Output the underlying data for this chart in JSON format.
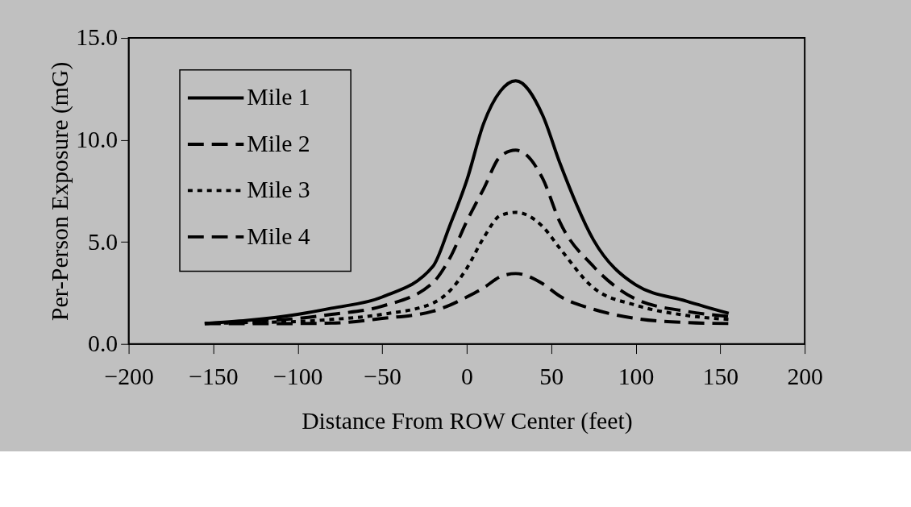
{
  "chart_data": {
    "type": "line",
    "xlabel": "Distance From ROW Center (feet)",
    "ylabel": "Per-Person Exposure (mG)",
    "x": [
      -155,
      -130,
      -100,
      -80,
      -50,
      -20,
      -10,
      0,
      10,
      20,
      29,
      45,
      55,
      75,
      100,
      130,
      155
    ],
    "series": [
      {
        "name": "Mile 1",
        "color": "#000000",
        "line_style": "solid",
        "values": [
          1.0,
          1.15,
          1.45,
          1.75,
          2.3,
          3.8,
          5.8,
          8.0,
          10.8,
          12.4,
          12.9,
          11.2,
          8.9,
          5.1,
          2.9,
          2.1,
          1.5
        ]
      },
      {
        "name": "Mile 2",
        "color": "#000000",
        "line_style": "dashed",
        "values": [
          1.0,
          1.1,
          1.25,
          1.45,
          1.85,
          3.0,
          4.2,
          6.0,
          7.6,
          9.2,
          9.5,
          8.1,
          6.0,
          3.8,
          2.2,
          1.6,
          1.35
        ]
      },
      {
        "name": "Mile 3",
        "color": "#000000",
        "line_style": "dotted",
        "values": [
          1.0,
          1.05,
          1.1,
          1.2,
          1.45,
          2.0,
          2.6,
          3.7,
          5.2,
          6.3,
          6.45,
          5.75,
          4.7,
          2.75,
          1.9,
          1.4,
          1.2
        ]
      },
      {
        "name": "Mile 4",
        "color": "#000000",
        "line_style": "dashed",
        "values": [
          1.0,
          1.0,
          1.0,
          1.02,
          1.25,
          1.6,
          1.9,
          2.3,
          2.75,
          3.3,
          3.45,
          2.95,
          2.35,
          1.7,
          1.25,
          1.05,
          1.0
        ]
      }
    ],
    "xlim": [
      -200,
      200
    ],
    "xticks": [
      -200,
      -150,
      -100,
      -50,
      0,
      50,
      100,
      150,
      200
    ],
    "ylim": [
      0,
      15
    ],
    "yticks": [
      {
        "value": 0,
        "label": "0.0"
      },
      {
        "value": 5,
        "label": "5.0"
      },
      {
        "value": 10,
        "label": "10.0"
      },
      {
        "value": 15,
        "label": "15.0"
      }
    ],
    "grid": false,
    "legend": "top left",
    "marker": "none"
  }
}
